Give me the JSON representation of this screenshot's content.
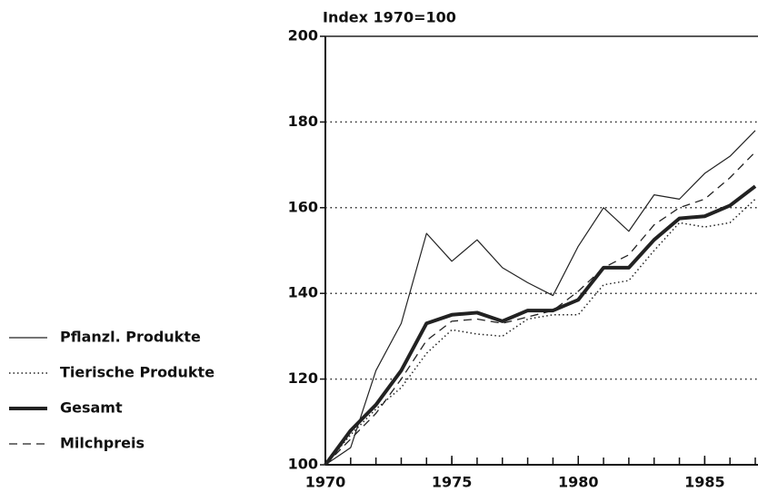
{
  "chart_data": {
    "type": "line",
    "y_label": "Index 1970=100",
    "x": [
      1970,
      1971,
      1972,
      1973,
      1974,
      1975,
      1976,
      1977,
      1978,
      1979,
      1980,
      1981,
      1982,
      1983,
      1984,
      1985,
      1986,
      1987
    ],
    "xlim": [
      1970,
      1987
    ],
    "xticks": [
      1970,
      1975,
      1980,
      1985
    ],
    "ylim": [
      100,
      200
    ],
    "yticks": [
      100,
      120,
      140,
      160,
      180,
      200
    ],
    "grid": true,
    "legend": "left",
    "series": [
      {
        "name": "Pflanzl. Produkte",
        "color": "#222",
        "style": "solid",
        "width": 1.2,
        "values": [
          100,
          104,
          122,
          133,
          154,
          147.5,
          152.5,
          146,
          142.5,
          139.5,
          151,
          160,
          154.5,
          163,
          162,
          168,
          172,
          178
        ]
      },
      {
        "name": "Tierische Produkte",
        "color": "#222",
        "style": "dotted",
        "width": 1.5,
        "values": [
          100,
          107,
          113,
          118,
          126,
          131.5,
          130.5,
          130,
          134,
          135,
          135,
          142,
          143,
          150,
          156.5,
          155.5,
          156.5,
          162
        ]
      },
      {
        "name": "Gesamt",
        "color": "#222",
        "style": "solid",
        "width": 4,
        "values": [
          100,
          108,
          114,
          122,
          133,
          135,
          135.5,
          133.5,
          136,
          136,
          138.5,
          146,
          146,
          152.5,
          157.5,
          158,
          160.5,
          165
        ]
      },
      {
        "name": "Milchpreis",
        "color": "#222",
        "style": "dashed",
        "width": 1.3,
        "values": [
          100,
          106,
          112,
          120,
          129,
          133.5,
          134,
          133,
          134.5,
          136,
          140.5,
          146,
          149,
          156,
          160,
          162,
          167,
          173
        ]
      }
    ]
  }
}
